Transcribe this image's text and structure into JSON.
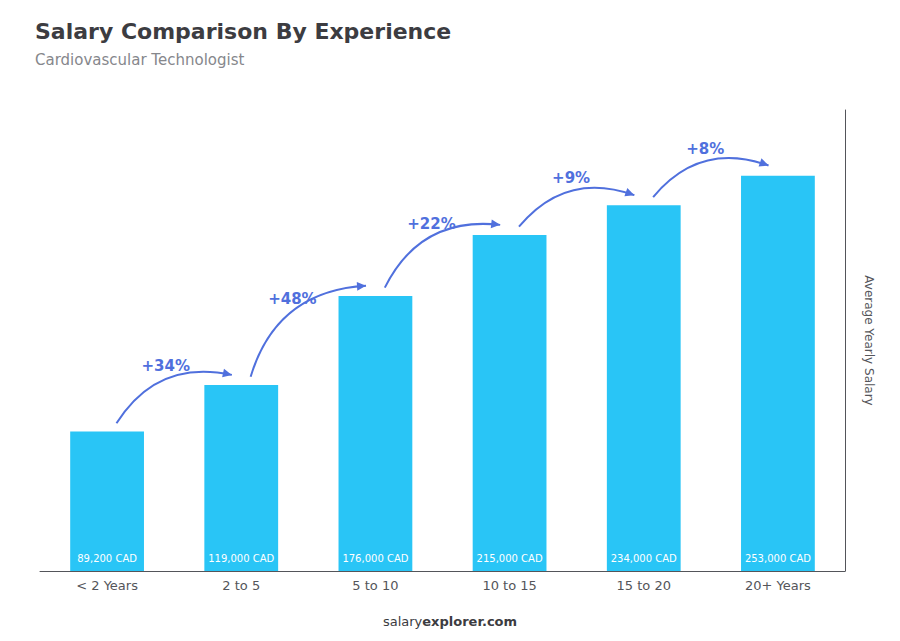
{
  "chart_data": {
    "type": "bar",
    "title": "Salary Comparison By Experience",
    "subtitle": "Cardiovascular Technologist",
    "categories": [
      "< 2 Years",
      "2 to 5",
      "5 to 10",
      "10 to 15",
      "15 to 20",
      "20+ Years"
    ],
    "values": [
      89200,
      119000,
      176000,
      215000,
      234000,
      253000
    ],
    "value_labels": [
      "89,200 CAD",
      "119,000 CAD",
      "176,000 CAD",
      "215,000 CAD",
      "234,000 CAD",
      "253,000 CAD"
    ],
    "data_labels": true,
    "color": "#29c5f6",
    "ylabel": "Average Yearly Salary",
    "ylim": [
      0,
      295000
    ],
    "grid": false,
    "tick_labels": "x",
    "annotations": [
      "+34%",
      "+48%",
      "+22%",
      "+9%",
      "+8%"
    ],
    "watermark": [
      "salary",
      "explorer.com"
    ]
  }
}
